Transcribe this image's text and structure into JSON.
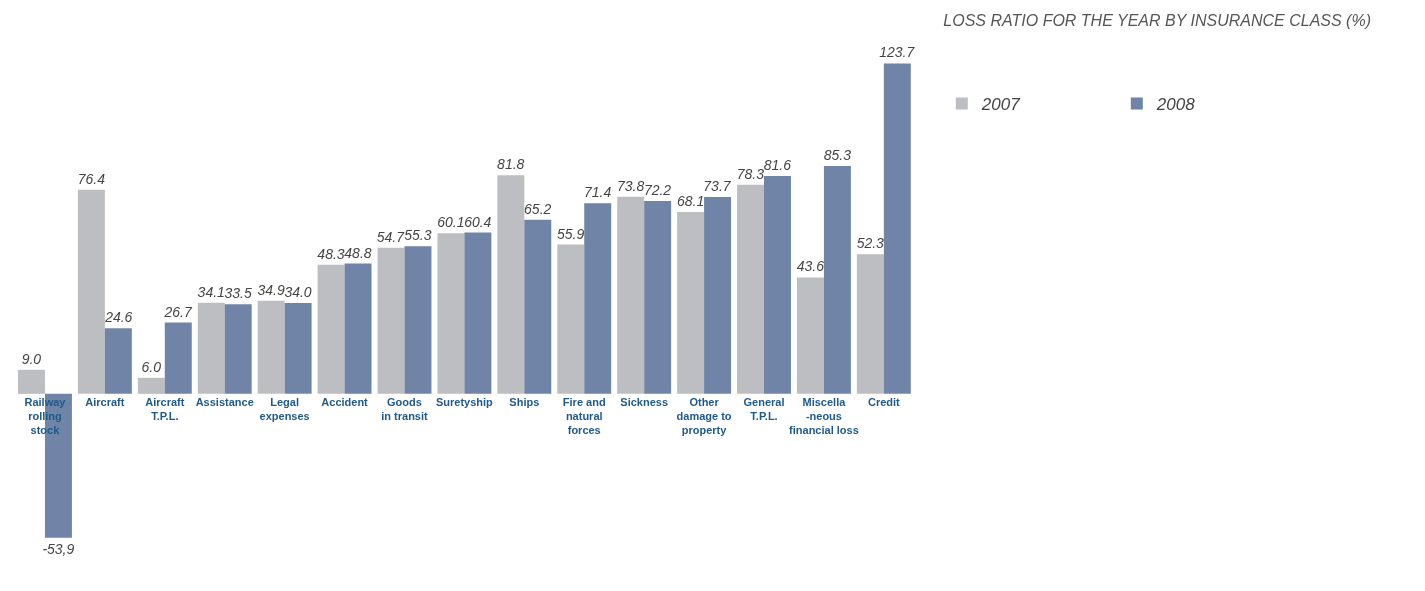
{
  "chart_data": {
    "type": "bar",
    "title": "LOSS RATIO FOR THE YEAR BY INSURANCE CLASS (%)",
    "categories": [
      "Railway\nrolling\nstock",
      "Aircraft",
      "Aircraft\nT.P.L.",
      "Assistance",
      "Legal\nexpenses",
      "Accident",
      "Goods\nin transit",
      "Suretyship",
      "Ships",
      "Fire and\nnatural\nforces",
      "Sickness",
      "Other\ndamage to\nproperty",
      "General\nT.P.L.",
      "Miscella\n-neous\nfinancial loss",
      "Credit"
    ],
    "series": [
      {
        "name": "2007",
        "color": "#bdbec2",
        "values": [
          9.0,
          76.4,
          6.0,
          34.1,
          34.9,
          48.3,
          54.7,
          60.1,
          81.8,
          55.9,
          73.8,
          68.1,
          78.3,
          43.6,
          52.3
        ],
        "value_labels": [
          "9.0",
          "76.4",
          "6.0",
          "34.1",
          "34.9",
          "48.3",
          "54.7",
          "60.1",
          "81.8",
          "55.9",
          "73.8",
          "68.1",
          "78.3",
          "43.6",
          "52.3"
        ]
      },
      {
        "name": "2008",
        "color": "#6f84a6",
        "values": [
          -53.9,
          24.6,
          26.7,
          33.5,
          34.0,
          48.8,
          55.3,
          60.4,
          65.2,
          71.4,
          72.2,
          73.7,
          81.6,
          85.3,
          123.7
        ],
        "value_labels": [
          "-53,9",
          "24.6",
          "26.7",
          "33.5",
          "34.0",
          "48.8",
          "55.3",
          "60.4",
          "65.2",
          "71.4",
          "72.2",
          "73.7",
          "81.6",
          "85.3",
          "123.7"
        ]
      }
    ],
    "legend": "top right"
  }
}
